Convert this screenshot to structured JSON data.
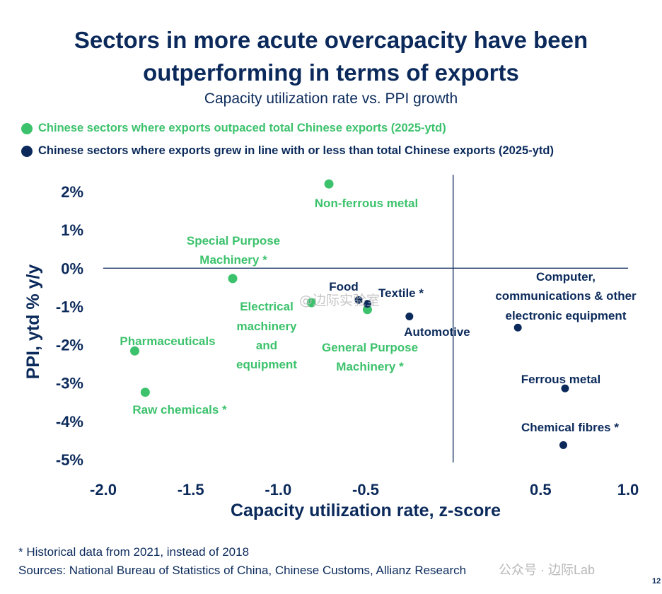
{
  "title_line1": "Sectors in more acute overcapacity have been",
  "title_line2": "outperforming in terms of exports",
  "subtitle": "Capacity utilization rate vs. PPI growth",
  "legend": [
    {
      "label": "Chinese sectors where exports outpaced total Chinese exports (2025-ytd)",
      "color": "#3cc26c"
    },
    {
      "label": "Chinese sectors where exports grew in line with or less than total Chinese exports (2025-ytd)",
      "color": "#0b2a5b"
    }
  ],
  "chart_data": {
    "type": "scatter",
    "title": "Capacity utilization rate vs. PPI growth",
    "xlabel": "Capacity utilization rate, z-score",
    "ylabel": "PPI, ytd % y/y",
    "xlim": [
      -2.0,
      1.0
    ],
    "ylim": [
      -5.5,
      2.5
    ],
    "xticks": [
      {
        "value": -2.0,
        "label": "-2.0"
      },
      {
        "value": -1.5,
        "label": "-1.5"
      },
      {
        "value": -1.0,
        "label": "-1.0"
      },
      {
        "value": -0.5,
        "label": "-0.5"
      },
      {
        "value": 0.5,
        "label": "0.5"
      },
      {
        "value": 1.0,
        "label": "1.0"
      }
    ],
    "yticks": [
      {
        "value": 2,
        "label": "2%"
      },
      {
        "value": 1,
        "label": "1%"
      },
      {
        "value": 0,
        "label": "0%"
      },
      {
        "value": -1,
        "label": "-1%"
      },
      {
        "value": -2,
        "label": "-2%"
      },
      {
        "value": -3,
        "label": "-3%"
      },
      {
        "value": -4,
        "label": "-4%"
      },
      {
        "value": -5,
        "label": "-5%"
      }
    ],
    "grid": false,
    "series": [
      {
        "name": "Chinese sectors where exports outpaced total Chinese exports (2025-ytd)",
        "color": "#3cc26c",
        "points": [
          {
            "label": "Non-ferrous metal",
            "x": -0.71,
            "y": 2.2
          },
          {
            "label": "Special Purpose Machinery *",
            "x": -1.26,
            "y": -0.27
          },
          {
            "label": "Electrical machinery and equipment",
            "x": -0.81,
            "y": -0.9
          },
          {
            "label": "General Purpose Machinery *",
            "x": -0.49,
            "y": -1.08
          },
          {
            "label": "Pharmaceuticals",
            "x": -1.82,
            "y": -2.16
          },
          {
            "label": "Raw chemicals *",
            "x": -1.76,
            "y": -3.24
          }
        ]
      },
      {
        "name": "Chinese sectors where exports grew in line with or less than total Chinese exports (2025-ytd)",
        "color": "#0b2a5b",
        "points": [
          {
            "label": "Food",
            "x": -0.54,
            "y": -0.83
          },
          {
            "label": "Textile *",
            "x": -0.49,
            "y": -0.93
          },
          {
            "label": "Automotive",
            "x": -0.25,
            "y": -1.26
          },
          {
            "label": "Computer, communications & other electronic equipment",
            "x": 0.37,
            "y": -1.55
          },
          {
            "label": "Ferrous metal",
            "x": 0.64,
            "y": -3.14
          },
          {
            "label": "Chemical fibres *",
            "x": 0.63,
            "y": -4.62
          }
        ]
      }
    ]
  },
  "point_labels": {
    "non_ferrous": "Non-ferrous metal",
    "special_1": "Special Purpose",
    "special_2": "Machinery *",
    "electrical_1": "Electrical",
    "electrical_2": "machinery",
    "electrical_3": "and",
    "electrical_4": "equipment",
    "general_1": "General Purpose",
    "general_2": "Machinery *",
    "pharma": "Pharmaceuticals",
    "raw": "Raw chemicals *",
    "food": "Food",
    "textile": "Textile *",
    "automotive": "Automotive",
    "computer_1": "Computer,",
    "computer_2": "communications & other",
    "computer_3": "electronic equipment",
    "ferrous": "Ferrous metal",
    "chem_fibres": "Chemical fibres *"
  },
  "footnote": "* Historical data from 2021, instead of 2018",
  "sources": "Sources: National Bureau of Statistics of China, Chinese Customs, Allianz Research",
  "watermark_center": "@边际实验室",
  "watermark_corner": "公众号 · 边际Lab",
  "page_number": "12"
}
